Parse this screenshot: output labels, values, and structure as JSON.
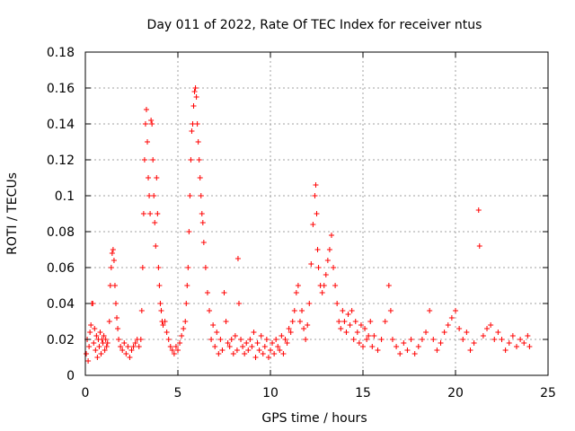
{
  "chart_data": {
    "type": "scatter",
    "title": "Day 011 of 2022, Rate Of TEC Index for receiver ntus",
    "xlabel": "GPS time / hours",
    "ylabel": "ROTI / TECUs",
    "xlim": [
      0,
      25
    ],
    "ylim": [
      0,
      0.18
    ],
    "x_ticks": [
      0,
      5,
      10,
      15,
      20,
      25
    ],
    "x_tick_labels": [
      "0",
      "5",
      "10",
      "15",
      "20",
      "25"
    ],
    "y_ticks": [
      0,
      0.02,
      0.04,
      0.06,
      0.08,
      0.1,
      0.12,
      0.14,
      0.16,
      0.18
    ],
    "y_tick_labels": [
      "0",
      "0.02",
      "0.04",
      "0.06",
      "0.08",
      "0.1",
      "0.12",
      "0.14",
      "0.16",
      "0.18"
    ],
    "grid": true,
    "marker": "+",
    "color": "#ff0000",
    "series": [
      {
        "name": "",
        "points": [
          [
            0.05,
            0.012
          ],
          [
            0.1,
            0.02
          ],
          [
            0.15,
            0.008
          ],
          [
            0.2,
            0.016
          ],
          [
            0.25,
            0.024
          ],
          [
            0.3,
            0.028
          ],
          [
            0.35,
            0.04
          ],
          [
            0.4,
            0.04
          ],
          [
            0.45,
            0.018
          ],
          [
            0.5,
            0.026
          ],
          [
            0.55,
            0.014
          ],
          [
            0.6,
            0.022
          ],
          [
            0.65,
            0.01
          ],
          [
            0.7,
            0.02
          ],
          [
            0.75,
            0.016
          ],
          [
            0.8,
            0.024
          ],
          [
            0.85,
            0.012
          ],
          [
            0.9,
            0.02
          ],
          [
            0.95,
            0.018
          ],
          [
            1.0,
            0.022
          ],
          [
            1.05,
            0.014
          ],
          [
            1.1,
            0.02
          ],
          [
            1.15,
            0.016
          ],
          [
            1.2,
            0.018
          ],
          [
            1.3,
            0.03
          ],
          [
            1.35,
            0.05
          ],
          [
            1.4,
            0.06
          ],
          [
            1.45,
            0.068
          ],
          [
            1.5,
            0.07
          ],
          [
            1.55,
            0.064
          ],
          [
            1.6,
            0.05
          ],
          [
            1.65,
            0.04
          ],
          [
            1.7,
            0.032
          ],
          [
            1.75,
            0.026
          ],
          [
            1.8,
            0.02
          ],
          [
            1.9,
            0.016
          ],
          [
            2.0,
            0.014
          ],
          [
            2.1,
            0.018
          ],
          [
            2.2,
            0.012
          ],
          [
            2.3,
            0.016
          ],
          [
            2.4,
            0.01
          ],
          [
            2.5,
            0.014
          ],
          [
            2.6,
            0.016
          ],
          [
            2.7,
            0.018
          ],
          [
            2.8,
            0.02
          ],
          [
            2.9,
            0.016
          ],
          [
            3.0,
            0.02
          ],
          [
            3.05,
            0.036
          ],
          [
            3.1,
            0.06
          ],
          [
            3.15,
            0.09
          ],
          [
            3.2,
            0.12
          ],
          [
            3.25,
            0.14
          ],
          [
            3.3,
            0.148
          ],
          [
            3.35,
            0.13
          ],
          [
            3.4,
            0.11
          ],
          [
            3.45,
            0.1
          ],
          [
            3.5,
            0.09
          ],
          [
            3.55,
            0.142
          ],
          [
            3.6,
            0.14
          ],
          [
            3.65,
            0.12
          ],
          [
            3.7,
            0.1
          ],
          [
            3.75,
            0.085
          ],
          [
            3.8,
            0.072
          ],
          [
            3.85,
            0.11
          ],
          [
            3.9,
            0.09
          ],
          [
            3.95,
            0.06
          ],
          [
            4.0,
            0.05
          ],
          [
            4.05,
            0.04
          ],
          [
            4.1,
            0.036
          ],
          [
            4.15,
            0.03
          ],
          [
            4.2,
            0.028
          ],
          [
            4.3,
            0.03
          ],
          [
            4.4,
            0.024
          ],
          [
            4.5,
            0.02
          ],
          [
            4.6,
            0.016
          ],
          [
            4.7,
            0.014
          ],
          [
            4.8,
            0.012
          ],
          [
            4.9,
            0.016
          ],
          [
            5.0,
            0.014
          ],
          [
            5.1,
            0.018
          ],
          [
            5.2,
            0.022
          ],
          [
            5.3,
            0.026
          ],
          [
            5.4,
            0.03
          ],
          [
            5.45,
            0.04
          ],
          [
            5.5,
            0.05
          ],
          [
            5.55,
            0.06
          ],
          [
            5.6,
            0.08
          ],
          [
            5.65,
            0.1
          ],
          [
            5.7,
            0.12
          ],
          [
            5.75,
            0.136
          ],
          [
            5.8,
            0.14
          ],
          [
            5.85,
            0.15
          ],
          [
            5.9,
            0.158
          ],
          [
            5.95,
            0.16
          ],
          [
            6.0,
            0.155
          ],
          [
            6.05,
            0.14
          ],
          [
            6.1,
            0.13
          ],
          [
            6.15,
            0.12
          ],
          [
            6.2,
            0.11
          ],
          [
            6.25,
            0.1
          ],
          [
            6.3,
            0.09
          ],
          [
            6.35,
            0.085
          ],
          [
            6.4,
            0.074
          ],
          [
            6.5,
            0.06
          ],
          [
            6.6,
            0.046
          ],
          [
            6.7,
            0.036
          ],
          [
            6.8,
            0.02
          ],
          [
            6.9,
            0.028
          ],
          [
            7.0,
            0.016
          ],
          [
            7.1,
            0.024
          ],
          [
            7.2,
            0.012
          ],
          [
            7.3,
            0.02
          ],
          [
            7.4,
            0.014
          ],
          [
            7.5,
            0.046
          ],
          [
            7.6,
            0.03
          ],
          [
            7.7,
            0.018
          ],
          [
            7.8,
            0.016
          ],
          [
            7.9,
            0.02
          ],
          [
            8.0,
            0.012
          ],
          [
            8.1,
            0.022
          ],
          [
            8.2,
            0.014
          ],
          [
            8.25,
            0.065
          ],
          [
            8.3,
            0.04
          ],
          [
            8.4,
            0.02
          ],
          [
            8.5,
            0.016
          ],
          [
            8.6,
            0.012
          ],
          [
            8.7,
            0.018
          ],
          [
            8.8,
            0.014
          ],
          [
            8.9,
            0.02
          ],
          [
            9.0,
            0.016
          ],
          [
            9.1,
            0.024
          ],
          [
            9.2,
            0.01
          ],
          [
            9.3,
            0.018
          ],
          [
            9.4,
            0.014
          ],
          [
            9.5,
            0.022
          ],
          [
            9.6,
            0.012
          ],
          [
            9.7,
            0.016
          ],
          [
            9.8,
            0.02
          ],
          [
            9.9,
            0.01
          ],
          [
            10.0,
            0.014
          ],
          [
            10.1,
            0.018
          ],
          [
            10.2,
            0.012
          ],
          [
            10.3,
            0.02
          ],
          [
            10.4,
            0.016
          ],
          [
            10.5,
            0.014
          ],
          [
            10.6,
            0.022
          ],
          [
            10.7,
            0.012
          ],
          [
            10.8,
            0.02
          ],
          [
            10.9,
            0.018
          ],
          [
            11.0,
            0.026
          ],
          [
            11.1,
            0.024
          ],
          [
            11.2,
            0.03
          ],
          [
            11.3,
            0.036
          ],
          [
            11.4,
            0.046
          ],
          [
            11.5,
            0.05
          ],
          [
            11.6,
            0.03
          ],
          [
            11.7,
            0.036
          ],
          [
            11.8,
            0.026
          ],
          [
            11.9,
            0.02
          ],
          [
            12.0,
            0.028
          ],
          [
            12.1,
            0.04
          ],
          [
            12.2,
            0.062
          ],
          [
            12.3,
            0.084
          ],
          [
            12.4,
            0.1
          ],
          [
            12.45,
            0.106
          ],
          [
            12.5,
            0.09
          ],
          [
            12.55,
            0.07
          ],
          [
            12.6,
            0.06
          ],
          [
            12.7,
            0.05
          ],
          [
            12.8,
            0.046
          ],
          [
            12.9,
            0.05
          ],
          [
            13.0,
            0.056
          ],
          [
            13.1,
            0.064
          ],
          [
            13.2,
            0.07
          ],
          [
            13.3,
            0.078
          ],
          [
            13.4,
            0.06
          ],
          [
            13.5,
            0.05
          ],
          [
            13.6,
            0.04
          ],
          [
            13.7,
            0.03
          ],
          [
            13.8,
            0.026
          ],
          [
            13.9,
            0.036
          ],
          [
            14.0,
            0.03
          ],
          [
            14.1,
            0.024
          ],
          [
            14.2,
            0.034
          ],
          [
            14.3,
            0.028
          ],
          [
            14.4,
            0.036
          ],
          [
            14.5,
            0.02
          ],
          [
            14.6,
            0.03
          ],
          [
            14.7,
            0.024
          ],
          [
            14.8,
            0.018
          ],
          [
            14.9,
            0.028
          ],
          [
            15.0,
            0.016
          ],
          [
            15.1,
            0.026
          ],
          [
            15.2,
            0.02
          ],
          [
            15.3,
            0.022
          ],
          [
            15.4,
            0.03
          ],
          [
            15.5,
            0.016
          ],
          [
            15.6,
            0.022
          ],
          [
            15.8,
            0.014
          ],
          [
            16.0,
            0.02
          ],
          [
            16.2,
            0.03
          ],
          [
            16.4,
            0.05
          ],
          [
            16.5,
            0.036
          ],
          [
            16.6,
            0.02
          ],
          [
            16.8,
            0.016
          ],
          [
            17.0,
            0.012
          ],
          [
            17.2,
            0.018
          ],
          [
            17.4,
            0.014
          ],
          [
            17.6,
            0.02
          ],
          [
            17.8,
            0.012
          ],
          [
            18.0,
            0.016
          ],
          [
            18.2,
            0.02
          ],
          [
            18.4,
            0.024
          ],
          [
            18.6,
            0.036
          ],
          [
            18.8,
            0.02
          ],
          [
            19.0,
            0.014
          ],
          [
            19.2,
            0.018
          ],
          [
            19.4,
            0.024
          ],
          [
            19.6,
            0.028
          ],
          [
            19.8,
            0.032
          ],
          [
            20.0,
            0.036
          ],
          [
            20.2,
            0.026
          ],
          [
            20.4,
            0.02
          ],
          [
            20.6,
            0.024
          ],
          [
            20.8,
            0.014
          ],
          [
            21.0,
            0.018
          ],
          [
            21.25,
            0.092
          ],
          [
            21.3,
            0.072
          ],
          [
            21.5,
            0.022
          ],
          [
            21.7,
            0.026
          ],
          [
            21.9,
            0.028
          ],
          [
            22.1,
            0.02
          ],
          [
            22.3,
            0.024
          ],
          [
            22.5,
            0.02
          ],
          [
            22.7,
            0.014
          ],
          [
            22.9,
            0.018
          ],
          [
            23.1,
            0.022
          ],
          [
            23.3,
            0.016
          ],
          [
            23.5,
            0.02
          ],
          [
            23.7,
            0.018
          ],
          [
            23.9,
            0.022
          ],
          [
            24.0,
            0.016
          ]
        ]
      }
    ]
  }
}
